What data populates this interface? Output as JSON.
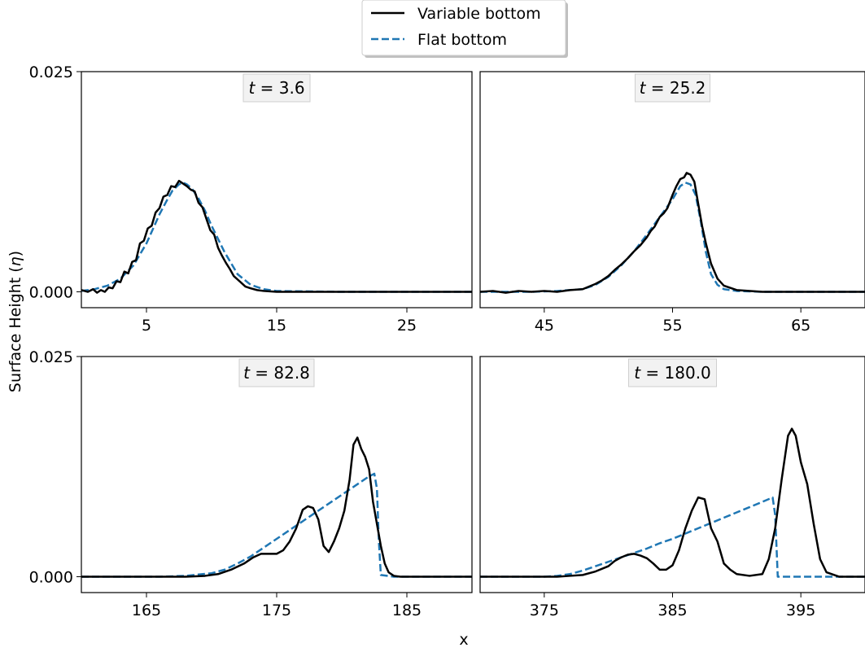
{
  "legend": {
    "location": "top-center",
    "entries": [
      {
        "label": "Variable bottom",
        "color": "#000000",
        "dash": "solid"
      },
      {
        "label": "Flat bottom",
        "color": "#1f77b4",
        "dash": "dashed"
      }
    ]
  },
  "chart_data": [
    {
      "type": "line",
      "panel_label": {
        "var": "t",
        "value": "3.6"
      },
      "xlim": [
        0,
        30
      ],
      "ylim": [
        -0.0018,
        0.025
      ],
      "xticks": [
        "5",
        "15",
        "25"
      ],
      "xtick_values": [
        5,
        15,
        25
      ],
      "yticks": [
        "0.000",
        "0.025"
      ],
      "ytick_values": [
        0,
        0.025
      ],
      "series": [
        {
          "name": "Variable bottom",
          "color": "#000000",
          "x": [
            0,
            0.5,
            0.9,
            1.2,
            1.5,
            1.8,
            2.1,
            2.4,
            2.7,
            3.0,
            3.3,
            3.6,
            3.9,
            4.2,
            4.5,
            4.8,
            5.1,
            5.4,
            5.7,
            6.0,
            6.3,
            6.6,
            6.9,
            7.2,
            7.5,
            7.8,
            8.1,
            8.4,
            8.7,
            9.0,
            9.3,
            9.6,
            9.9,
            10.2,
            10.5,
            10.8,
            11.1,
            11.4,
            11.7,
            12.0,
            12.3,
            12.6,
            13.0,
            13.5,
            14.0,
            15.0,
            17.0,
            20.0,
            25.0,
            30.0
          ],
          "y": [
            0.0002,
            0.0,
            0.0003,
            -0.0001,
            0.0002,
            0.0,
            0.0005,
            0.0004,
            0.0012,
            0.0011,
            0.0023,
            0.0021,
            0.0034,
            0.0036,
            0.0055,
            0.0058,
            0.0072,
            0.0075,
            0.009,
            0.0095,
            0.0108,
            0.011,
            0.012,
            0.0119,
            0.0126,
            0.0123,
            0.012,
            0.0116,
            0.0114,
            0.0101,
            0.0096,
            0.0083,
            0.007,
            0.0065,
            0.005,
            0.0041,
            0.0033,
            0.0026,
            0.0018,
            0.0014,
            0.001,
            0.0006,
            0.0004,
            0.0002,
            0.0001,
            0.0,
            0.0,
            0.0,
            0.0,
            0.0
          ]
        },
        {
          "name": "Flat bottom",
          "color": "#1f77b4",
          "x": [
            0,
            1,
            2,
            3,
            4,
            5,
            6,
            6.5,
            7,
            7.5,
            7.8,
            8.1,
            8.5,
            9,
            9.5,
            10,
            11,
            12,
            13,
            14,
            15,
            20,
            25,
            30
          ],
          "y": [
            0.0001,
            0.0003,
            0.0007,
            0.0015,
            0.003,
            0.0055,
            0.0088,
            0.0102,
            0.0115,
            0.0122,
            0.0124,
            0.0122,
            0.0117,
            0.0106,
            0.0092,
            0.0075,
            0.0045,
            0.002,
            0.0008,
            0.0003,
            0.0001,
            0.0,
            0.0,
            0.0
          ]
        }
      ]
    },
    {
      "type": "line",
      "panel_label": {
        "var": "t",
        "value": "25.2"
      },
      "xlim": [
        40,
        70
      ],
      "ylim": [
        -0.0018,
        0.025
      ],
      "xticks": [
        "45",
        "55",
        "65"
      ],
      "xtick_values": [
        45,
        55,
        65
      ],
      "yticks": [
        "0.000",
        "0.025"
      ],
      "ytick_values": [
        0,
        0.025
      ],
      "series": [
        {
          "name": "Variable bottom",
          "color": "#000000",
          "x": [
            40,
            41,
            42,
            43,
            44,
            45,
            46,
            47,
            48,
            48.5,
            49,
            49.5,
            50,
            50.5,
            51,
            51.5,
            52,
            52.5,
            53,
            53.3,
            53.6,
            54,
            54.3,
            54.6,
            55,
            55.3,
            55.6,
            55.9,
            56.1,
            56.4,
            56.7,
            57,
            57.3,
            57.6,
            58,
            58.5,
            59,
            60,
            62,
            65,
            70
          ],
          "y": [
            0.0,
            0.0001,
            -0.0001,
            0.0001,
            0.0,
            0.0001,
            0.0,
            0.0002,
            0.0003,
            0.0006,
            0.0009,
            0.0013,
            0.0018,
            0.0025,
            0.0031,
            0.0038,
            0.0046,
            0.0053,
            0.0062,
            0.0069,
            0.0074,
            0.0085,
            0.0089,
            0.0095,
            0.011,
            0.012,
            0.0128,
            0.013,
            0.0135,
            0.0133,
            0.0125,
            0.01,
            0.0075,
            0.0055,
            0.0032,
            0.0015,
            0.0007,
            0.0002,
            0.0,
            0.0,
            0.0
          ]
        },
        {
          "name": "Flat bottom",
          "color": "#1f77b4",
          "x": [
            40,
            44,
            46,
            48,
            49,
            50,
            51,
            52,
            53,
            54,
            55,
            55.6,
            56,
            56.4,
            56.8,
            57.2,
            57.6,
            58,
            58.5,
            59,
            60,
            62,
            65,
            70
          ],
          "y": [
            0.0,
            0.0,
            0.0001,
            0.0003,
            0.0008,
            0.0017,
            0.003,
            0.0046,
            0.0065,
            0.0085,
            0.0105,
            0.012,
            0.0124,
            0.0122,
            0.011,
            0.008,
            0.0045,
            0.002,
            0.0008,
            0.0003,
            0.0001,
            0.0,
            0.0,
            0.0
          ]
        }
      ]
    },
    {
      "type": "line",
      "panel_label": {
        "var": "t",
        "value": "82.8"
      },
      "xlim": [
        160,
        190
      ],
      "ylim": [
        -0.0018,
        0.025
      ],
      "xticks": [
        "165",
        "175",
        "185"
      ],
      "xtick_values": [
        165,
        175,
        185
      ],
      "yticks": [
        "0.000",
        "0.025"
      ],
      "ytick_values": [
        0,
        0.025
      ],
      "series": [
        {
          "name": "Variable bottom",
          "color": "#000000",
          "x": [
            160,
            162,
            164,
            166,
            168,
            169.5,
            170.5,
            171.5,
            172.5,
            173.2,
            173.8,
            174.5,
            175.0,
            175.5,
            176.0,
            176.5,
            177.0,
            177.4,
            177.8,
            178.2,
            178.6,
            179.0,
            179.4,
            179.8,
            180.2,
            180.6,
            180.9,
            181.2,
            181.5,
            181.8,
            182.1,
            182.4,
            182.7,
            183.0,
            183.3,
            183.6,
            184.0,
            184.5,
            185.0,
            187.0,
            190.0
          ],
          "y": [
            0.0,
            0.0,
            0.0,
            0.0,
            0.0,
            0.0001,
            0.0003,
            0.0008,
            0.0015,
            0.0022,
            0.0026,
            0.0026,
            0.0026,
            0.003,
            0.004,
            0.0055,
            0.0076,
            0.008,
            0.0078,
            0.0065,
            0.0035,
            0.0028,
            0.004,
            0.0055,
            0.0075,
            0.011,
            0.015,
            0.0158,
            0.0145,
            0.0136,
            0.0122,
            0.0085,
            0.006,
            0.0035,
            0.0015,
            0.0005,
            0.0001,
            0.0,
            0.0,
            0.0,
            0.0
          ]
        },
        {
          "name": "Flat bottom",
          "color": "#1f77b4",
          "x": [
            160,
            166,
            168,
            170,
            171,
            172,
            173,
            174,
            175,
            176,
            177,
            178,
            179,
            180,
            181,
            182,
            182.5,
            182.7,
            182.85,
            183.0,
            184,
            187,
            190
          ],
          "y": [
            0.0,
            0.0,
            0.0001,
            0.0004,
            0.0008,
            0.0015,
            0.0023,
            0.0033,
            0.0043,
            0.0053,
            0.0063,
            0.0073,
            0.0083,
            0.0093,
            0.0103,
            0.0113,
            0.0117,
            0.01,
            0.004,
            0.0002,
            0.0,
            0.0,
            0.0
          ]
        }
      ]
    },
    {
      "type": "line",
      "panel_label": {
        "var": "t",
        "value": "180.0"
      },
      "xlim": [
        370,
        400
      ],
      "ylim": [
        -0.0018,
        0.025
      ],
      "xticks": [
        "375",
        "385",
        "395"
      ],
      "xtick_values": [
        375,
        385,
        395
      ],
      "yticks": [
        "0.000",
        "0.025"
      ],
      "ytick_values": [
        0,
        0.025
      ],
      "series": [
        {
          "name": "Variable bottom",
          "color": "#000000",
          "x": [
            370,
            372,
            374,
            376,
            377,
            378,
            379,
            380,
            380.5,
            381,
            381.5,
            382,
            382.5,
            383,
            383.5,
            384,
            384.5,
            385,
            385.5,
            386,
            386.5,
            387,
            387.5,
            388,
            388.5,
            389,
            389.5,
            390,
            391,
            392,
            392.5,
            393,
            393.5,
            394,
            394.3,
            394.6,
            395,
            395.5,
            396,
            396.5,
            397,
            398,
            400
          ],
          "y": [
            0.0,
            0.0,
            0.0,
            0.0,
            0.0001,
            0.0002,
            0.0006,
            0.0012,
            0.0018,
            0.0022,
            0.0025,
            0.0026,
            0.0024,
            0.0021,
            0.0015,
            0.0008,
            0.0008,
            0.0013,
            0.003,
            0.0055,
            0.0075,
            0.009,
            0.0088,
            0.0055,
            0.004,
            0.0015,
            0.0008,
            0.0003,
            0.0001,
            0.0003,
            0.002,
            0.0055,
            0.011,
            0.016,
            0.0168,
            0.016,
            0.013,
            0.0105,
            0.006,
            0.002,
            0.0005,
            0.0,
            0.0
          ]
        },
        {
          "name": "Flat bottom",
          "color": "#1f77b4",
          "x": [
            370,
            375,
            376,
            377,
            378,
            379,
            380,
            381,
            382,
            383,
            384,
            385,
            386,
            387,
            388,
            389,
            390,
            391,
            392,
            392.8,
            393.0,
            393.2,
            395,
            400
          ],
          "y": [
            0.0,
            0.0,
            0.0001,
            0.0003,
            0.0007,
            0.0012,
            0.0017,
            0.0022,
            0.0027,
            0.0032,
            0.0038,
            0.0043,
            0.0049,
            0.0055,
            0.0061,
            0.0067,
            0.0073,
            0.0079,
            0.0085,
            0.009,
            0.007,
            0.0,
            0.0,
            0.0
          ]
        }
      ]
    }
  ],
  "axes": {
    "xlabel": "x",
    "ylabel_prefix": "Surface Height (",
    "ylabel_symbol": "η",
    "ylabel_suffix": ")"
  }
}
